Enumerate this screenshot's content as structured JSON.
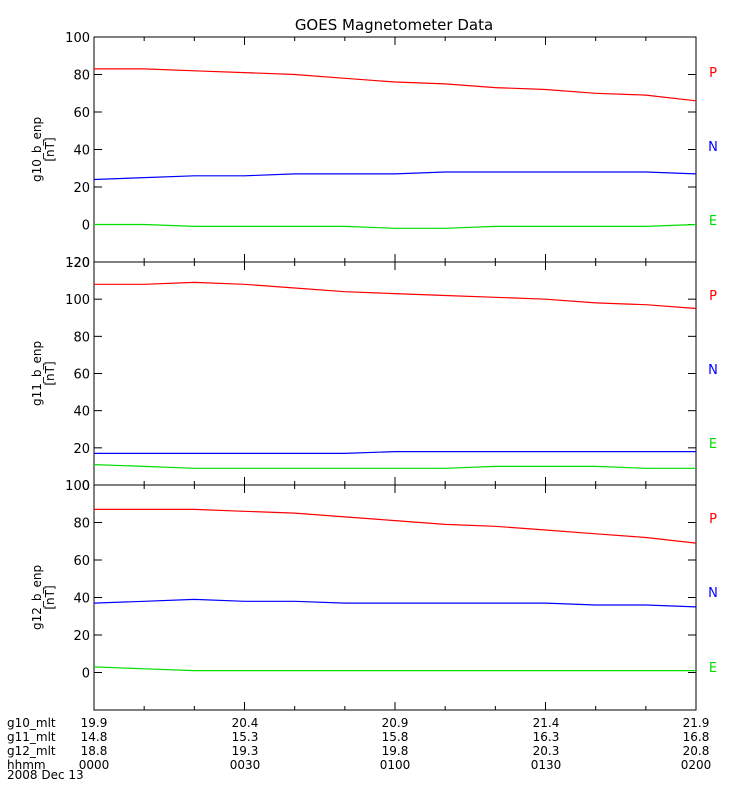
{
  "chart_data": {
    "type": "line",
    "title": "GOES Magnetometer Data",
    "x": [
      0,
      10,
      20,
      30,
      40,
      50,
      60,
      70,
      80,
      90,
      100,
      110,
      120
    ],
    "xlim": [
      0,
      120
    ],
    "series_colors": {
      "P": "#ff0000",
      "N": "#0000ff",
      "E": "#00dd00"
    },
    "panels": [
      {
        "ylabel": "g10_b_enp",
        "yunit": "[nT]",
        "ylim": [
          -20,
          100
        ],
        "yticks": [
          "-20",
          "0",
          "20",
          "40",
          "60",
          "80",
          "100"
        ],
        "components": [
          "P",
          "N",
          "E"
        ],
        "series": [
          {
            "name": "P",
            "values": [
              83,
              83,
              82,
              81,
              80,
              78,
              76,
              75,
              73,
              72,
              70,
              69,
              66
            ]
          },
          {
            "name": "N",
            "values": [
              24,
              25,
              26,
              26,
              27,
              27,
              27,
              28,
              28,
              28,
              28,
              28,
              27
            ]
          },
          {
            "name": "E",
            "values": [
              0,
              0,
              -1,
              -1,
              -1,
              -1,
              -2,
              -2,
              -1,
              -1,
              -1,
              -1,
              0
            ]
          }
        ]
      },
      {
        "ylabel": "g11_b_enp",
        "yunit": "[nT]",
        "ylim": [
          0,
          120
        ],
        "yticks": [
          "0",
          "20",
          "40",
          "60",
          "80",
          "100",
          "120"
        ],
        "components": [
          "P",
          "N",
          "E"
        ],
        "series": [
          {
            "name": "P",
            "values": [
              108,
              108,
              109,
              108,
              106,
              104,
              103,
              102,
              101,
              100,
              98,
              97,
              95
            ]
          },
          {
            "name": "N",
            "values": [
              17,
              17,
              17,
              17,
              17,
              17,
              18,
              18,
              18,
              18,
              18,
              18,
              18
            ]
          },
          {
            "name": "E",
            "values": [
              11,
              10,
              9,
              9,
              9,
              9,
              9,
              9,
              10,
              10,
              10,
              9,
              9
            ]
          }
        ]
      },
      {
        "ylabel": "g12_b_enp",
        "yunit": "[nT]",
        "ylim": [
          -20,
          100
        ],
        "yticks": [
          "0",
          "20",
          "40",
          "60",
          "80",
          "100"
        ],
        "components": [
          "P",
          "N",
          "E"
        ],
        "series": [
          {
            "name": "P",
            "values": [
              87,
              87,
              87,
              86,
              85,
              83,
              81,
              79,
              78,
              76,
              74,
              72,
              69
            ]
          },
          {
            "name": "N",
            "values": [
              37,
              38,
              39,
              38,
              38,
              37,
              37,
              37,
              37,
              37,
              36,
              36,
              35
            ]
          },
          {
            "name": "E",
            "values": [
              3,
              2,
              1,
              1,
              1,
              1,
              1,
              1,
              1,
              1,
              1,
              1,
              1
            ]
          }
        ]
      }
    ],
    "x_axis_rows": [
      {
        "label": "g10_mlt",
        "values": [
          "19.9",
          "20.4",
          "20.9",
          "21.4",
          "21.9"
        ]
      },
      {
        "label": "g11_mlt",
        "values": [
          "14.8",
          "15.3",
          "15.8",
          "16.3",
          "16.8"
        ]
      },
      {
        "label": "g12_mlt",
        "values": [
          "18.8",
          "19.3",
          "19.8",
          "20.3",
          "20.8"
        ]
      },
      {
        "label": "hhmm",
        "values": [
          "0000",
          "0030",
          "0100",
          "0130",
          "0200"
        ]
      }
    ],
    "date": "2008 Dec 13"
  }
}
